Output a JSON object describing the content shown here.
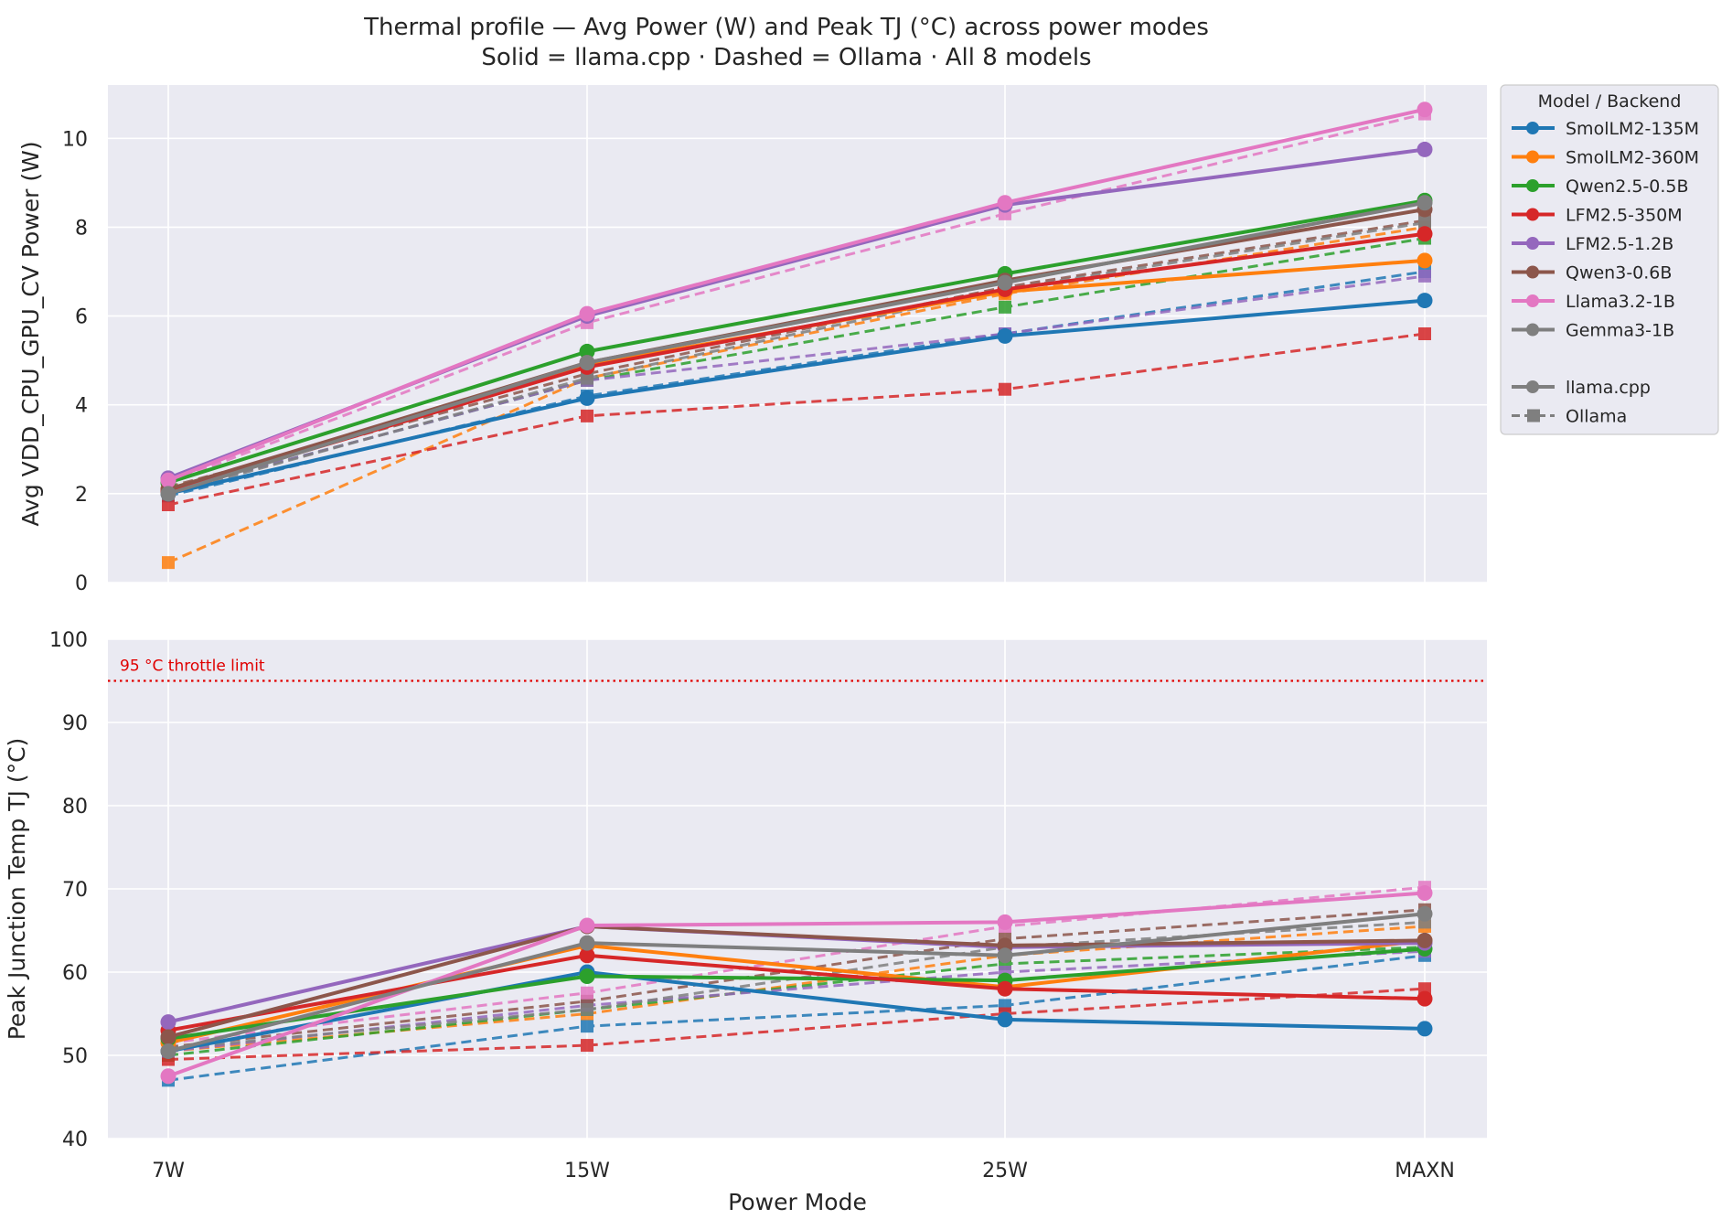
{
  "chart_data": [
    {
      "type": "line",
      "title": "Thermal profile — Avg Power (W) and Peak TJ (°C) across power modes",
      "subtitle": "Solid = llama.cpp  ·  Dashed = Ollama  ·  All 8 models",
      "xlabel": "",
      "ylabel": "Avg VDD_CPU_GPU_CV Power (W)",
      "categories": [
        "7W",
        "15W",
        "25W",
        "MAXN"
      ],
      "ylim": [
        0,
        11.2
      ],
      "yticks": [
        0,
        2,
        4,
        6,
        8,
        10
      ],
      "grid": true,
      "legend_position": "outside-right",
      "series": [
        {
          "name": "SmolLM2-135M",
          "backend": "llama.cpp",
          "color": "#1f77b4",
          "values": [
            2.0,
            4.15,
            5.55,
            6.35
          ]
        },
        {
          "name": "SmolLM2-360M",
          "backend": "llama.cpp",
          "color": "#ff7f0e",
          "values": [
            2.1,
            4.9,
            6.55,
            7.25
          ]
        },
        {
          "name": "Qwen2.5-0.5B",
          "backend": "llama.cpp",
          "color": "#2ca02c",
          "values": [
            2.25,
            5.2,
            6.95,
            8.6
          ]
        },
        {
          "name": "LFM2.5-350M",
          "backend": "llama.cpp",
          "color": "#d62728",
          "values": [
            2.05,
            4.85,
            6.6,
            7.85
          ]
        },
        {
          "name": "LFM2.5-1.2B",
          "backend": "llama.cpp",
          "color": "#9467bd",
          "values": [
            2.35,
            6.0,
            8.5,
            9.75
          ]
        },
        {
          "name": "Qwen3-0.6B",
          "backend": "llama.cpp",
          "color": "#8c564b",
          "values": [
            2.1,
            4.95,
            6.8,
            8.4
          ]
        },
        {
          "name": "Llama3.2-1B",
          "backend": "llama.cpp",
          "color": "#e377c2",
          "values": [
            2.3,
            6.05,
            8.55,
            10.65
          ]
        },
        {
          "name": "Gemma3-1B",
          "backend": "llama.cpp",
          "color": "#7f7f7f",
          "values": [
            2.0,
            4.95,
            6.75,
            8.55
          ]
        },
        {
          "name": "SmolLM2-135M",
          "backend": "Ollama",
          "color": "#1f77b4",
          "values": [
            1.95,
            4.2,
            5.6,
            7.0
          ]
        },
        {
          "name": "SmolLM2-360M",
          "backend": "Ollama",
          "color": "#ff7f0e",
          "values": [
            0.45,
            4.6,
            6.5,
            8.0
          ]
        },
        {
          "name": "Qwen2.5-0.5B",
          "backend": "Ollama",
          "color": "#2ca02c",
          "values": [
            2.05,
            4.55,
            6.2,
            7.75
          ]
        },
        {
          "name": "LFM2.5-350M",
          "backend": "Ollama",
          "color": "#d62728",
          "values": [
            1.75,
            3.75,
            4.35,
            5.6
          ]
        },
        {
          "name": "LFM2.5-1.2B",
          "backend": "Ollama",
          "color": "#9467bd",
          "values": [
            2.05,
            4.55,
            5.6,
            6.9
          ]
        },
        {
          "name": "Qwen3-0.6B",
          "backend": "Ollama",
          "color": "#8c564b",
          "values": [
            2.15,
            4.7,
            6.65,
            8.15
          ]
        },
        {
          "name": "Llama3.2-1B",
          "backend": "Ollama",
          "color": "#e377c2",
          "values": [
            2.25,
            5.85,
            8.3,
            10.55
          ]
        },
        {
          "name": "Gemma3-1B",
          "backend": "Ollama",
          "color": "#7f7f7f",
          "values": [
            2.0,
            4.6,
            6.6,
            8.1
          ]
        }
      ]
    },
    {
      "type": "line",
      "xlabel": "Power Mode",
      "ylabel": "Peak Junction Temp TJ (°C)",
      "categories": [
        "7W",
        "15W",
        "25W",
        "MAXN"
      ],
      "ylim": [
        40,
        100
      ],
      "yticks": [
        40,
        50,
        60,
        70,
        80,
        90,
        100
      ],
      "grid": true,
      "annotation": {
        "text": "95 °C throttle limit",
        "y": 95,
        "color": "#e00000"
      },
      "series": [
        {
          "name": "SmolLM2-135M",
          "backend": "llama.cpp",
          "color": "#1f77b4",
          "values": [
            50.5,
            60.0,
            54.3,
            53.2
          ]
        },
        {
          "name": "SmolLM2-360M",
          "backend": "llama.cpp",
          "color": "#ff7f0e",
          "values": [
            51.5,
            63.2,
            58.2,
            63.8
          ]
        },
        {
          "name": "Qwen2.5-0.5B",
          "backend": "llama.cpp",
          "color": "#2ca02c",
          "values": [
            52.0,
            59.5,
            59.0,
            62.8
          ]
        },
        {
          "name": "LFM2.5-350M",
          "backend": "llama.cpp",
          "color": "#d62728",
          "values": [
            53.0,
            62.0,
            58.0,
            56.8
          ]
        },
        {
          "name": "LFM2.5-1.2B",
          "backend": "llama.cpp",
          "color": "#9467bd",
          "values": [
            54.0,
            65.5,
            63.0,
            63.5
          ]
        },
        {
          "name": "Qwen3-0.6B",
          "backend": "llama.cpp",
          "color": "#8c564b",
          "values": [
            52.2,
            65.5,
            63.2,
            63.8
          ]
        },
        {
          "name": "Llama3.2-1B",
          "backend": "llama.cpp",
          "color": "#e377c2",
          "values": [
            47.5,
            65.6,
            66.0,
            69.5
          ]
        },
        {
          "name": "Gemma3-1B",
          "backend": "llama.cpp",
          "color": "#7f7f7f",
          "values": [
            50.5,
            63.5,
            62.0,
            67.0
          ]
        },
        {
          "name": "SmolLM2-135M",
          "backend": "Ollama",
          "color": "#1f77b4",
          "values": [
            47.0,
            53.5,
            56.0,
            62.0
          ]
        },
        {
          "name": "SmolLM2-360M",
          "backend": "Ollama",
          "color": "#ff7f0e",
          "values": [
            50.5,
            55.0,
            62.0,
            65.5
          ]
        },
        {
          "name": "Qwen2.5-0.5B",
          "backend": "Ollama",
          "color": "#2ca02c",
          "values": [
            50.0,
            55.5,
            61.0,
            63.0
          ]
        },
        {
          "name": "LFM2.5-350M",
          "backend": "Ollama",
          "color": "#d62728",
          "values": [
            49.5,
            51.2,
            55.0,
            58.0
          ]
        },
        {
          "name": "LFM2.5-1.2B",
          "backend": "Ollama",
          "color": "#9467bd",
          "values": [
            50.5,
            56.0,
            60.0,
            62.5
          ]
        },
        {
          "name": "Qwen3-0.6B",
          "backend": "Ollama",
          "color": "#8c564b",
          "values": [
            51.0,
            56.5,
            64.0,
            67.5
          ]
        },
        {
          "name": "Llama3.2-1B",
          "backend": "Ollama",
          "color": "#e377c2",
          "values": [
            51.5,
            57.5,
            65.5,
            70.2
          ]
        },
        {
          "name": "Gemma3-1B",
          "backend": "Ollama",
          "color": "#7f7f7f",
          "values": [
            50.8,
            55.5,
            63.0,
            66.0
          ]
        }
      ]
    }
  ],
  "legend": {
    "title": "Model  /  Backend",
    "models": [
      {
        "label": "SmolLM2-135M",
        "color": "#1f77b4"
      },
      {
        "label": "SmolLM2-360M",
        "color": "#ff7f0e"
      },
      {
        "label": "Qwen2.5-0.5B",
        "color": "#2ca02c"
      },
      {
        "label": "LFM2.5-350M",
        "color": "#d62728"
      },
      {
        "label": "LFM2.5-1.2B",
        "color": "#9467bd"
      },
      {
        "label": "Qwen3-0.6B",
        "color": "#8c564b"
      },
      {
        "label": "Llama3.2-1B",
        "color": "#e377c2"
      },
      {
        "label": "Gemma3-1B",
        "color": "#7f7f7f"
      }
    ],
    "backends": [
      {
        "label": "llama.cpp",
        "style": "solid",
        "marker": "circle",
        "color": "#7f7f7f"
      },
      {
        "label": "Ollama",
        "style": "dashed",
        "marker": "square",
        "color": "#7f7f7f"
      }
    ]
  },
  "colors": {
    "plot_background": "#eaeaf2",
    "grid": "#ffffff",
    "throttle_line": "#e00000"
  }
}
